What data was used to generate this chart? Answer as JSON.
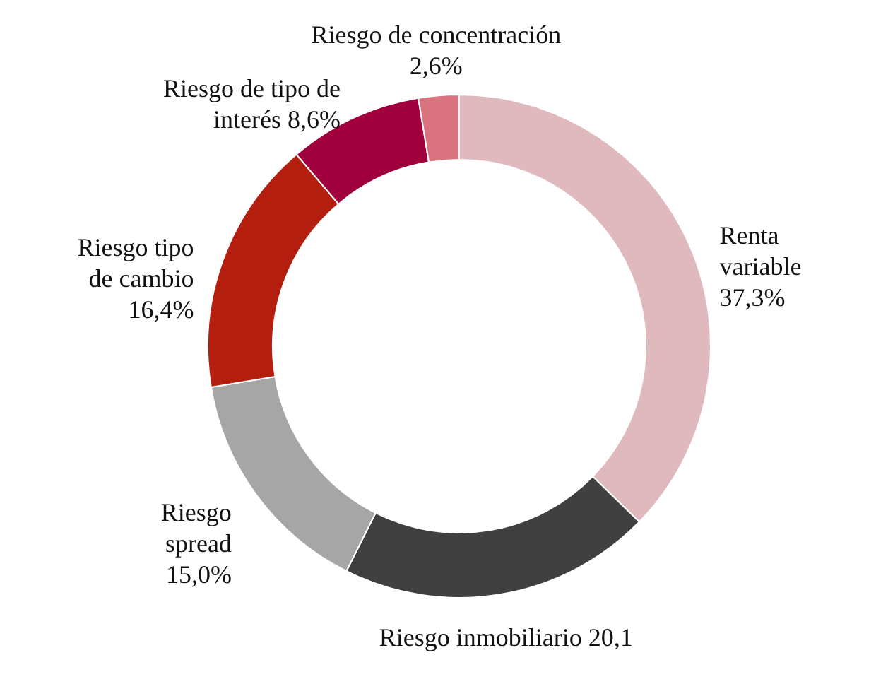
{
  "chart_data": {
    "type": "donut",
    "categories": [
      "Renta\nvariable",
      "Riesgo inmobiliario",
      "Riesgo\nspread",
      "Riesgo tipo\nde cambio",
      "Riesgo de tipo de\ninterés",
      "Riesgo de concentración"
    ],
    "values": [
      37.3,
      20.1,
      15.0,
      16.4,
      8.6,
      2.6
    ],
    "value_labels": [
      "37,3%",
      "20,1",
      "15,0%",
      "16,4%",
      "8,6%",
      "2,6%"
    ],
    "colors": [
      "#e0b9bf",
      "#404040",
      "#a6a6a6",
      "#b41e0f",
      "#a0003c",
      "#d9737e"
    ]
  }
}
